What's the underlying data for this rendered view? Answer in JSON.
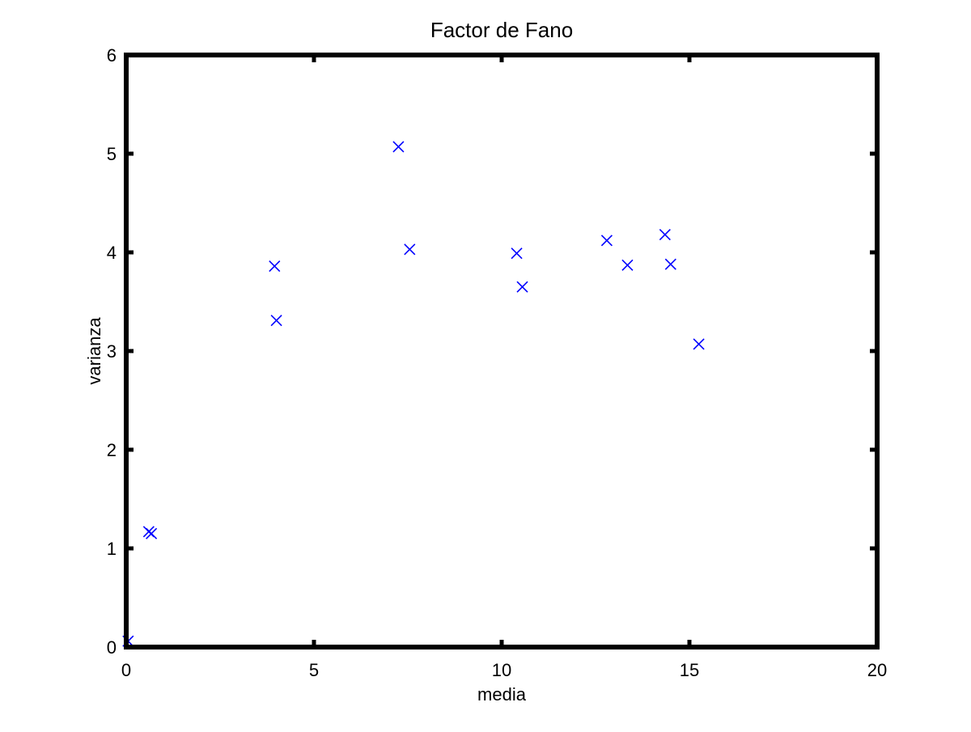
{
  "chart_data": {
    "type": "scatter",
    "title": "Factor de Fano",
    "xlabel": "media",
    "ylabel": "varianza",
    "xlim": [
      0,
      20
    ],
    "ylim": [
      0,
      6
    ],
    "x_ticks": [
      0,
      5,
      10,
      15,
      20
    ],
    "y_ticks": [
      0,
      1,
      2,
      3,
      4,
      5,
      6
    ],
    "x_tick_labels": [
      "0",
      "5",
      "10",
      "15",
      "20"
    ],
    "y_tick_labels": [
      "0",
      "1",
      "2",
      "3",
      "4",
      "5",
      "6"
    ],
    "grid": false,
    "legend": "none",
    "marker": "x",
    "series": [
      {
        "x": [
          0.05,
          0.6,
          0.67,
          3.95,
          4.0,
          7.25,
          7.55,
          10.4,
          10.55,
          12.8,
          13.35,
          14.35,
          14.5,
          15.25
        ],
        "y": [
          0.06,
          1.17,
          1.15,
          3.86,
          3.31,
          5.07,
          4.03,
          3.99,
          3.65,
          4.12,
          3.87,
          4.18,
          3.88,
          3.07
        ],
        "color": "#0000ff"
      }
    ]
  }
}
